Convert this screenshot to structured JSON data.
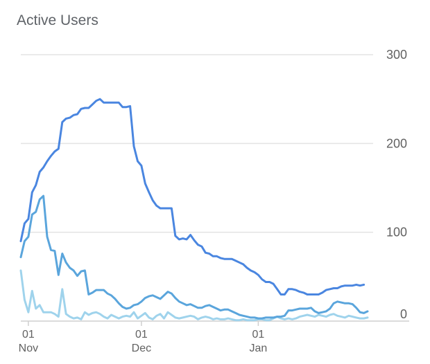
{
  "chart_data": {
    "type": "line",
    "title": "Active Users",
    "x_start": "2016-10-30",
    "x_end": "2017-01-30",
    "x_ticks": [
      {
        "date": "2016-11-01",
        "day": "01",
        "month": "Nov"
      },
      {
        "date": "2016-12-01",
        "day": "01",
        "month": "Dec"
      },
      {
        "date": "2017-01-01",
        "day": "01",
        "month": "Jan"
      }
    ],
    "y_axis": {
      "ylim": [
        0,
        300
      ],
      "ticks": [
        0,
        100,
        200,
        300
      ],
      "position": "right"
    },
    "grid": true,
    "legend": "none",
    "series": [
      {
        "color": "#4a86e0",
        "points": [
          [
            "2016-10-30",
            90
          ],
          [
            "2016-10-31",
            110
          ],
          [
            "2016-11-01",
            115
          ],
          [
            "2016-11-02",
            145
          ],
          [
            "2016-11-03",
            153
          ],
          [
            "2016-11-04",
            168
          ],
          [
            "2016-11-05",
            173
          ],
          [
            "2016-11-06",
            180
          ],
          [
            "2016-11-07",
            186
          ],
          [
            "2016-11-08",
            191
          ],
          [
            "2016-11-09",
            194
          ],
          [
            "2016-11-10",
            224
          ],
          [
            "2016-11-11",
            228
          ],
          [
            "2016-11-12",
            229
          ],
          [
            "2016-11-13",
            232
          ],
          [
            "2016-11-14",
            233
          ],
          [
            "2016-11-15",
            239
          ],
          [
            "2016-11-16",
            240
          ],
          [
            "2016-11-17",
            240
          ],
          [
            "2016-11-18",
            244
          ],
          [
            "2016-11-19",
            248
          ],
          [
            "2016-11-20",
            250
          ],
          [
            "2016-11-21",
            246
          ],
          [
            "2016-11-22",
            246
          ],
          [
            "2016-11-23",
            246
          ],
          [
            "2016-11-24",
            246
          ],
          [
            "2016-11-25",
            246
          ],
          [
            "2016-11-26",
            241
          ],
          [
            "2016-11-27",
            241
          ],
          [
            "2016-11-28",
            242
          ],
          [
            "2016-11-29",
            197
          ],
          [
            "2016-11-30",
            180
          ],
          [
            "2016-12-01",
            175
          ],
          [
            "2016-12-02",
            155
          ],
          [
            "2016-12-03",
            145
          ],
          [
            "2016-12-04",
            136
          ],
          [
            "2016-12-05",
            130
          ],
          [
            "2016-12-06",
            127
          ],
          [
            "2016-12-07",
            127
          ],
          [
            "2016-12-08",
            127
          ],
          [
            "2016-12-09",
            127
          ],
          [
            "2016-12-10",
            96
          ],
          [
            "2016-12-11",
            92
          ],
          [
            "2016-12-12",
            93
          ],
          [
            "2016-12-13",
            92
          ],
          [
            "2016-12-14",
            97
          ],
          [
            "2016-12-15",
            91
          ],
          [
            "2016-12-16",
            86
          ],
          [
            "2016-12-17",
            84
          ],
          [
            "2016-12-18",
            77
          ],
          [
            "2016-12-19",
            76
          ],
          [
            "2016-12-20",
            73
          ],
          [
            "2016-12-21",
            73
          ],
          [
            "2016-12-22",
            71
          ],
          [
            "2016-12-23",
            70
          ],
          [
            "2016-12-24",
            70
          ],
          [
            "2016-12-25",
            70
          ],
          [
            "2016-12-26",
            68
          ],
          [
            "2016-12-27",
            66
          ],
          [
            "2016-12-28",
            64
          ],
          [
            "2016-12-29",
            60
          ],
          [
            "2016-12-30",
            57
          ],
          [
            "2016-12-31",
            55
          ],
          [
            "2017-01-01",
            52
          ],
          [
            "2017-01-02",
            47
          ],
          [
            "2017-01-03",
            44
          ],
          [
            "2017-01-04",
            44
          ],
          [
            "2017-01-05",
            42
          ],
          [
            "2017-01-06",
            36
          ],
          [
            "2017-01-07",
            30
          ],
          [
            "2017-01-08",
            30
          ],
          [
            "2017-01-09",
            36
          ],
          [
            "2017-01-10",
            36
          ],
          [
            "2017-01-11",
            35
          ],
          [
            "2017-01-12",
            33
          ],
          [
            "2017-01-13",
            32
          ],
          [
            "2017-01-14",
            30
          ],
          [
            "2017-01-15",
            30
          ],
          [
            "2017-01-16",
            30
          ],
          [
            "2017-01-17",
            30
          ],
          [
            "2017-01-18",
            32
          ],
          [
            "2017-01-19",
            35
          ],
          [
            "2017-01-20",
            36
          ],
          [
            "2017-01-21",
            37
          ],
          [
            "2017-01-22",
            37
          ],
          [
            "2017-01-23",
            39
          ],
          [
            "2017-01-24",
            40
          ],
          [
            "2017-01-25",
            40
          ],
          [
            "2017-01-26",
            40
          ],
          [
            "2017-01-27",
            41
          ],
          [
            "2017-01-28",
            40
          ],
          [
            "2017-01-29",
            41
          ]
        ]
      },
      {
        "color": "#5aa5dc",
        "points": [
          [
            "2016-10-30",
            72
          ],
          [
            "2016-10-31",
            90
          ],
          [
            "2016-11-01",
            95
          ],
          [
            "2016-11-02",
            120
          ],
          [
            "2016-11-03",
            123
          ],
          [
            "2016-11-04",
            137
          ],
          [
            "2016-11-05",
            141
          ],
          [
            "2016-11-06",
            95
          ],
          [
            "2016-11-07",
            80
          ],
          [
            "2016-11-08",
            79
          ],
          [
            "2016-11-09",
            52
          ],
          [
            "2016-11-10",
            76
          ],
          [
            "2016-11-11",
            66
          ],
          [
            "2016-11-12",
            60
          ],
          [
            "2016-11-13",
            57
          ],
          [
            "2016-11-14",
            51
          ],
          [
            "2016-11-15",
            56
          ],
          [
            "2016-11-16",
            57
          ],
          [
            "2016-11-17",
            30
          ],
          [
            "2016-11-18",
            32
          ],
          [
            "2016-11-19",
            35
          ],
          [
            "2016-11-20",
            35
          ],
          [
            "2016-11-21",
            35
          ],
          [
            "2016-11-22",
            31
          ],
          [
            "2016-11-23",
            29
          ],
          [
            "2016-11-24",
            25
          ],
          [
            "2016-11-25",
            20
          ],
          [
            "2016-11-26",
            16
          ],
          [
            "2016-11-27",
            14
          ],
          [
            "2016-11-28",
            15
          ],
          [
            "2016-11-29",
            18
          ],
          [
            "2016-11-30",
            19
          ],
          [
            "2016-12-01",
            22
          ],
          [
            "2016-12-02",
            26
          ],
          [
            "2016-12-03",
            28
          ],
          [
            "2016-12-04",
            29
          ],
          [
            "2016-12-05",
            27
          ],
          [
            "2016-12-06",
            25
          ],
          [
            "2016-12-07",
            29
          ],
          [
            "2016-12-08",
            33
          ],
          [
            "2016-12-09",
            31
          ],
          [
            "2016-12-10",
            26
          ],
          [
            "2016-12-11",
            22
          ],
          [
            "2016-12-12",
            20
          ],
          [
            "2016-12-13",
            18
          ],
          [
            "2016-12-14",
            19
          ],
          [
            "2016-12-15",
            17
          ],
          [
            "2016-12-16",
            15
          ],
          [
            "2016-12-17",
            15
          ],
          [
            "2016-12-18",
            17
          ],
          [
            "2016-12-19",
            18
          ],
          [
            "2016-12-20",
            16
          ],
          [
            "2016-12-21",
            14
          ],
          [
            "2016-12-22",
            12
          ],
          [
            "2016-12-23",
            13
          ],
          [
            "2016-12-24",
            13
          ],
          [
            "2016-12-25",
            11
          ],
          [
            "2016-12-26",
            9
          ],
          [
            "2016-12-27",
            7
          ],
          [
            "2016-12-28",
            6
          ],
          [
            "2016-12-29",
            5
          ],
          [
            "2016-12-30",
            4
          ],
          [
            "2016-12-31",
            4
          ],
          [
            "2017-01-01",
            3
          ],
          [
            "2017-01-02",
            3
          ],
          [
            "2017-01-03",
            4
          ],
          [
            "2017-01-04",
            4
          ],
          [
            "2017-01-05",
            4
          ],
          [
            "2017-01-06",
            5
          ],
          [
            "2017-01-07",
            5
          ],
          [
            "2017-01-08",
            6
          ],
          [
            "2017-01-09",
            12
          ],
          [
            "2017-01-10",
            12
          ],
          [
            "2017-01-11",
            13
          ],
          [
            "2017-01-12",
            14
          ],
          [
            "2017-01-13",
            14
          ],
          [
            "2017-01-14",
            14
          ],
          [
            "2017-01-15",
            15
          ],
          [
            "2017-01-16",
            11
          ],
          [
            "2017-01-17",
            9
          ],
          [
            "2017-01-18",
            10
          ],
          [
            "2017-01-19",
            11
          ],
          [
            "2017-01-20",
            14
          ],
          [
            "2017-01-21",
            20
          ],
          [
            "2017-01-22",
            22
          ],
          [
            "2017-01-23",
            21
          ],
          [
            "2017-01-24",
            20
          ],
          [
            "2017-01-25",
            20
          ],
          [
            "2017-01-26",
            19
          ],
          [
            "2017-01-27",
            15
          ],
          [
            "2017-01-28",
            10
          ],
          [
            "2017-01-29",
            9
          ],
          [
            "2017-01-30",
            11
          ]
        ]
      },
      {
        "color": "#9fd3ec",
        "points": [
          [
            "2016-10-30",
            57
          ],
          [
            "2016-10-31",
            24
          ],
          [
            "2016-11-01",
            10
          ],
          [
            "2016-11-02",
            34
          ],
          [
            "2016-11-03",
            14
          ],
          [
            "2016-11-04",
            18
          ],
          [
            "2016-11-05",
            10
          ],
          [
            "2016-11-06",
            10
          ],
          [
            "2016-11-07",
            10
          ],
          [
            "2016-11-08",
            8
          ],
          [
            "2016-11-09",
            5
          ],
          [
            "2016-11-10",
            36
          ],
          [
            "2016-11-11",
            8
          ],
          [
            "2016-11-12",
            5
          ],
          [
            "2016-11-13",
            3
          ],
          [
            "2016-11-14",
            4
          ],
          [
            "2016-11-15",
            2
          ],
          [
            "2016-11-16",
            10
          ],
          [
            "2016-11-17",
            7
          ],
          [
            "2016-11-18",
            9
          ],
          [
            "2016-11-19",
            10
          ],
          [
            "2016-11-20",
            8
          ],
          [
            "2016-11-21",
            5
          ],
          [
            "2016-11-22",
            3
          ],
          [
            "2016-11-23",
            7
          ],
          [
            "2016-11-24",
            5
          ],
          [
            "2016-11-25",
            3
          ],
          [
            "2016-11-26",
            5
          ],
          [
            "2016-11-27",
            6
          ],
          [
            "2016-11-28",
            5
          ],
          [
            "2016-11-29",
            10
          ],
          [
            "2016-11-30",
            3
          ],
          [
            "2016-12-01",
            6
          ],
          [
            "2016-12-02",
            9
          ],
          [
            "2016-12-03",
            4
          ],
          [
            "2016-12-04",
            2
          ],
          [
            "2016-12-05",
            6
          ],
          [
            "2016-12-06",
            8
          ],
          [
            "2016-12-07",
            3
          ],
          [
            "2016-12-08",
            10
          ],
          [
            "2016-12-09",
            7
          ],
          [
            "2016-12-10",
            4
          ],
          [
            "2016-12-11",
            3
          ],
          [
            "2016-12-12",
            4
          ],
          [
            "2016-12-13",
            5
          ],
          [
            "2016-12-14",
            6
          ],
          [
            "2016-12-15",
            5
          ],
          [
            "2016-12-16",
            2
          ],
          [
            "2016-12-17",
            4
          ],
          [
            "2016-12-18",
            5
          ],
          [
            "2016-12-19",
            4
          ],
          [
            "2016-12-20",
            2
          ],
          [
            "2016-12-21",
            3
          ],
          [
            "2016-12-22",
            2
          ],
          [
            "2016-12-23",
            2
          ],
          [
            "2016-12-24",
            3
          ],
          [
            "2016-12-25",
            2
          ],
          [
            "2016-12-26",
            1
          ],
          [
            "2016-12-27",
            1
          ],
          [
            "2016-12-28",
            2
          ],
          [
            "2016-12-29",
            1
          ],
          [
            "2016-12-30",
            1
          ],
          [
            "2016-12-31",
            1
          ],
          [
            "2017-01-01",
            2
          ],
          [
            "2017-01-02",
            2
          ],
          [
            "2017-01-03",
            1
          ],
          [
            "2017-01-04",
            1
          ],
          [
            "2017-01-05",
            3
          ],
          [
            "2017-01-06",
            5
          ],
          [
            "2017-01-07",
            3
          ],
          [
            "2017-01-08",
            2
          ],
          [
            "2017-01-09",
            3
          ],
          [
            "2017-01-10",
            2
          ],
          [
            "2017-01-11",
            3
          ],
          [
            "2017-01-12",
            5
          ],
          [
            "2017-01-13",
            6
          ],
          [
            "2017-01-14",
            7
          ],
          [
            "2017-01-15",
            6
          ],
          [
            "2017-01-16",
            5
          ],
          [
            "2017-01-17",
            7
          ],
          [
            "2017-01-18",
            6
          ],
          [
            "2017-01-19",
            5
          ],
          [
            "2017-01-20",
            7
          ],
          [
            "2017-01-21",
            8
          ],
          [
            "2017-01-22",
            6
          ],
          [
            "2017-01-23",
            5
          ],
          [
            "2017-01-24",
            4
          ],
          [
            "2017-01-25",
            6
          ],
          [
            "2017-01-26",
            5
          ],
          [
            "2017-01-27",
            4
          ],
          [
            "2017-01-28",
            3
          ],
          [
            "2017-01-29",
            3
          ],
          [
            "2017-01-30",
            4
          ]
        ]
      }
    ]
  }
}
